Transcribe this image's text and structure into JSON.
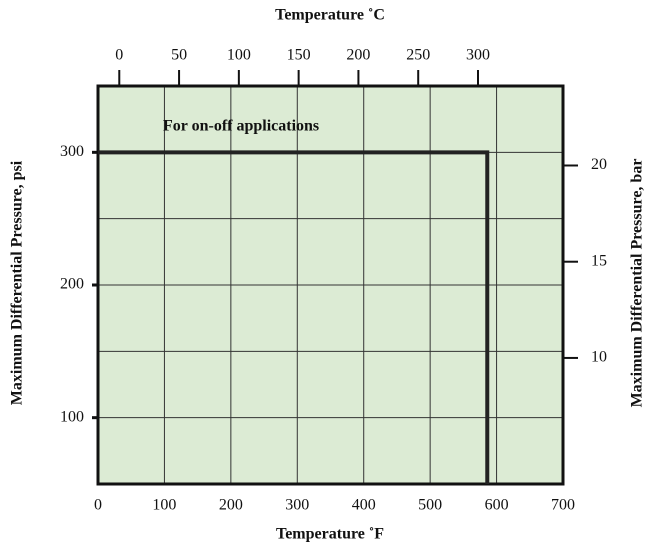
{
  "chart_data": {
    "type": "line",
    "title": "Temperature ˚C",
    "x_label": "Temperature ˚F",
    "y_label": "Maximum Differential Pressure, psi",
    "y2_label": "Maximum Differential Pressure, bar",
    "annotation": "For on-off applications",
    "xlim": [
      0,
      700
    ],
    "xticks": [
      0,
      100,
      200,
      300,
      400,
      500,
      600,
      700
    ],
    "x2lim": [
      -17.8,
      371.1
    ],
    "x2ticks": [
      0,
      50,
      100,
      150,
      200,
      250,
      300
    ],
    "ylim": [
      50,
      350
    ],
    "yticks": [
      100,
      200,
      300
    ],
    "ygrid": [
      100,
      150,
      200,
      250,
      300
    ],
    "y2lim": [
      3.45,
      24.13
    ],
    "y2ticks": [
      10,
      15,
      20
    ],
    "grid": true,
    "background": "#dcebd4",
    "series": [
      {
        "color": "#222222",
        "x": [
          0,
          586,
          586
        ],
        "values": [
          300,
          300,
          50
        ]
      }
    ]
  }
}
